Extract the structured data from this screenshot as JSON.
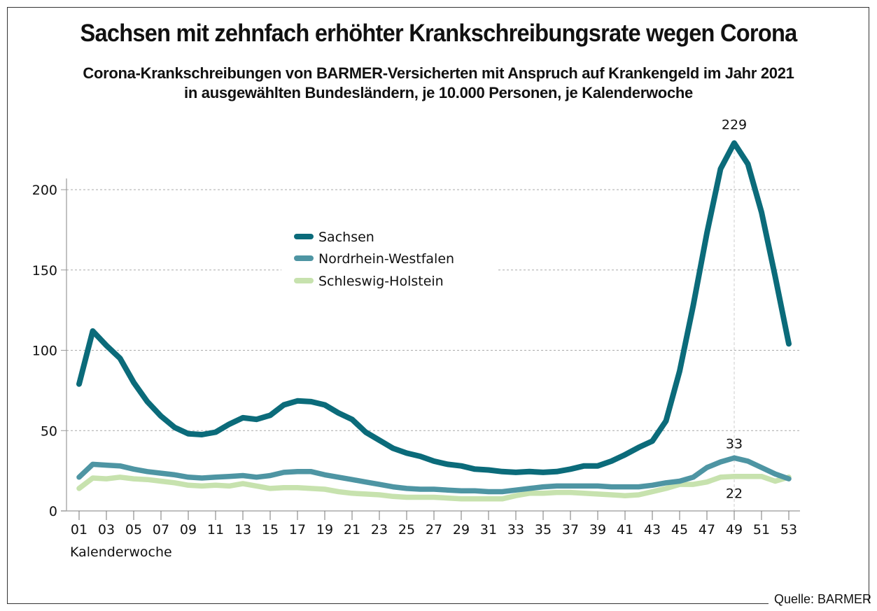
{
  "header": {
    "title": "Sachsen mit zehnfach erhöhter Krankschreibungsrate wegen Corona",
    "subtitle_line1": "Corona-Krankschreibungen von BARMER-Versicherten mit Anspruch auf Krankengeld im Jahr 2021",
    "subtitle_line2": "in ausgewählten Bundesländern, je 10.000 Personen, je Kalenderwoche"
  },
  "footer": {
    "source": "Quelle: BARMER"
  },
  "chart_data": {
    "type": "line",
    "title": "Sachsen mit zehnfach erhöhter Krankschreibungsrate wegen Corona",
    "subtitle": "Corona-Krankschreibungen von BARMER-Versicherten mit Anspruch auf Krankengeld im Jahr 2021 in ausgewählten Bundesländern, je 10.000 Personen, je Kalenderwoche",
    "xlabel": "Kalenderwoche",
    "ylabel": "",
    "ylim": [
      0,
      230
    ],
    "xlim": [
      1,
      53
    ],
    "yticks": [
      0,
      50,
      100,
      150,
      200
    ],
    "ytick_labels": [
      "0",
      "50",
      "100",
      "150",
      "200"
    ],
    "xticks": [
      1,
      3,
      5,
      7,
      9,
      11,
      13,
      15,
      17,
      19,
      21,
      23,
      25,
      27,
      29,
      31,
      33,
      35,
      37,
      39,
      41,
      43,
      45,
      47,
      49,
      51,
      53
    ],
    "xtick_labels": [
      "01",
      "03",
      "05",
      "07",
      "09",
      "11",
      "13",
      "15",
      "17",
      "19",
      "21",
      "23",
      "25",
      "27",
      "29",
      "31",
      "33",
      "35",
      "37",
      "39",
      "41",
      "43",
      "45",
      "47",
      "49",
      "51",
      "53"
    ],
    "grid": "horizontal dotted",
    "reference_line_x": 49,
    "legend_position": "upper-center",
    "x": [
      1,
      2,
      3,
      4,
      5,
      6,
      7,
      8,
      9,
      10,
      11,
      12,
      13,
      14,
      15,
      16,
      17,
      18,
      19,
      20,
      21,
      22,
      23,
      24,
      25,
      26,
      27,
      28,
      29,
      30,
      31,
      32,
      33,
      34,
      35,
      36,
      37,
      38,
      39,
      40,
      41,
      42,
      43,
      44,
      45,
      46,
      47,
      48,
      49,
      50,
      51,
      52,
      53
    ],
    "series": [
      {
        "name": "Sachsen",
        "color": "#0b6b7a",
        "values": [
          79,
          112,
          103,
          95,
          80,
          68,
          59,
          52,
          48,
          47.5,
          49,
          54,
          58,
          57,
          59.5,
          66,
          68.5,
          68,
          66,
          61,
          57,
          49,
          44,
          39,
          36,
          34,
          31,
          29,
          28,
          26,
          25.5,
          24.5,
          24,
          24.5,
          24,
          24.5,
          26,
          28,
          28,
          31,
          35,
          39.5,
          43.5,
          56,
          87,
          128,
          173,
          213,
          229,
          216,
          186,
          146,
          104
        ]
      },
      {
        "name": "Nordrhein-Westfalen",
        "color": "#4e95a3",
        "values": [
          21,
          29,
          28.5,
          28,
          26,
          24.5,
          23.5,
          22.5,
          21,
          20.5,
          21,
          21.5,
          22,
          21,
          22,
          24,
          24.5,
          24.5,
          22.5,
          21,
          19.5,
          18,
          16.5,
          15,
          14,
          13.5,
          13.5,
          13,
          12.5,
          12.5,
          12,
          12,
          13,
          14,
          15,
          15.5,
          15.5,
          15.5,
          15.5,
          15,
          15,
          15,
          16,
          17.5,
          18.5,
          21,
          27,
          30.5,
          33,
          31,
          27,
          23,
          20
        ]
      },
      {
        "name": "Schleswig-Holstein",
        "color": "#c7e2ae",
        "values": [
          14,
          20.5,
          20,
          21,
          20,
          19.5,
          18.5,
          17.5,
          16,
          15.5,
          16,
          15.5,
          17,
          15.5,
          14,
          14.5,
          14.5,
          14,
          13.5,
          12,
          11,
          10.5,
          10,
          9,
          8.5,
          8.5,
          8.5,
          8,
          7.5,
          7.5,
          7.5,
          7.5,
          9.5,
          11,
          11,
          11.5,
          11.5,
          11,
          10.5,
          10,
          9.5,
          10,
          12,
          14,
          16.5,
          16.5,
          18,
          21,
          21.5,
          21.5,
          21.5,
          18.5,
          21
        ]
      }
    ],
    "annotations": [
      {
        "series": "Sachsen",
        "x": 49,
        "text": "229",
        "placement": "above"
      },
      {
        "series": "Nordrhein-Westfalen",
        "x": 49,
        "text": "33",
        "placement": "above"
      },
      {
        "series": "Schleswig-Holstein",
        "x": 49,
        "text": "22",
        "placement": "below"
      }
    ]
  }
}
